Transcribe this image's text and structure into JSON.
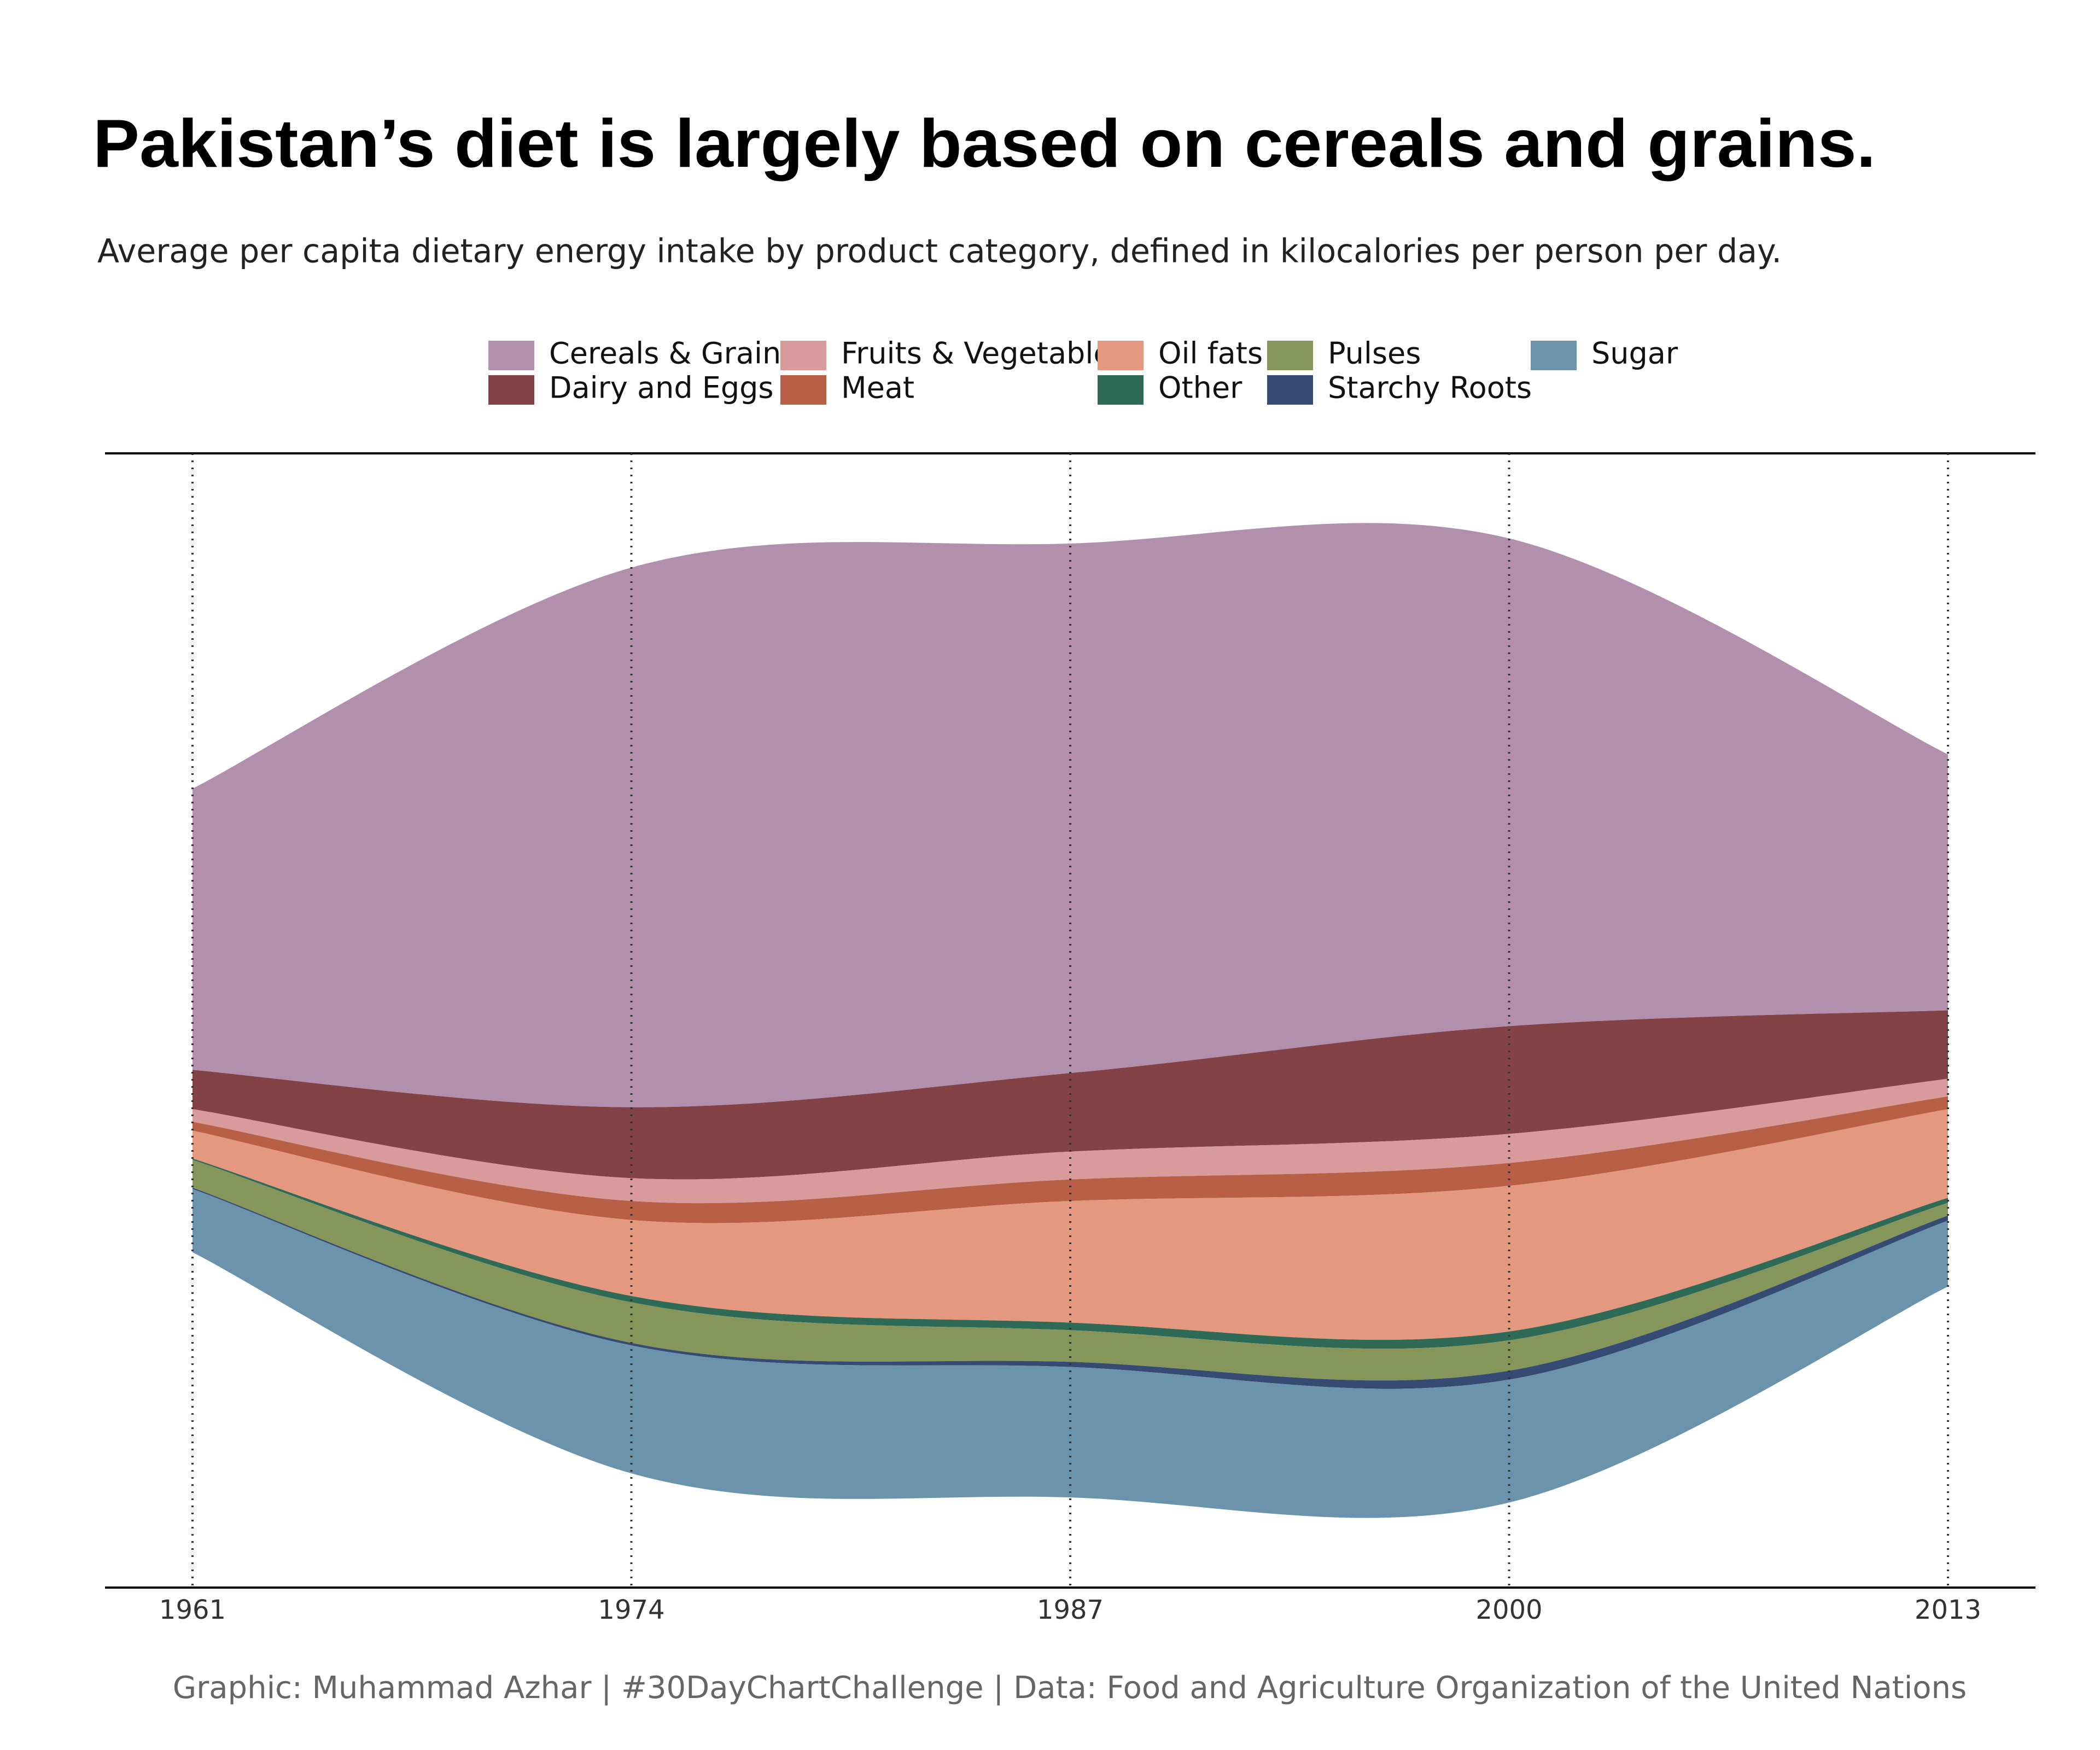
{
  "chart_data": {
    "type": "streamgraph",
    "title": "Pakistan’s diet is largely based on cereals and grains.",
    "subtitle": "Average per capita dietary energy intake by product category, defined in kilocalories per person per day.",
    "caption": "Graphic: Muhammad Azhar | #30DayChartChallenge | Data:  Food and Agriculture Organization of the United Nations",
    "x": [
      1961,
      1974,
      1987,
      2000,
      2013
    ],
    "xlim": [
      1961,
      2013
    ],
    "xticks": [
      1961,
      1974,
      1987,
      2000,
      2013
    ],
    "grid": true,
    "legend": "top",
    "series": [
      {
        "name": "Cereals & Grains",
        "color": "#b38fae",
        "values": [
          666,
          1278,
          1254,
          1155,
          606
        ]
      },
      {
        "name": "Dairy and Eggs",
        "color": "#834245",
        "values": [
          93,
          168,
          186,
          255,
          162
        ]
      },
      {
        "name": "Fruits & Vegetable",
        "color": "#d89a9b",
        "values": [
          30,
          54,
          66,
          69,
          42
        ]
      },
      {
        "name": "Meat",
        "color": "#b85f45",
        "values": [
          21,
          45,
          51,
          54,
          30
        ]
      },
      {
        "name": "Oil fats",
        "color": "#e3987f",
        "values": [
          66,
          180,
          288,
          345,
          210
        ]
      },
      {
        "name": "Other",
        "color": "#2f6a57",
        "values": [
          3,
          15,
          18,
          21,
          12
        ]
      },
      {
        "name": "Pulses",
        "color": "#86955a",
        "values": [
          66,
          96,
          75,
          72,
          30
        ]
      },
      {
        "name": "Starchy Roots",
        "color": "#354b74",
        "values": [
          3,
          6,
          12,
          21,
          12
        ]
      },
      {
        "name": "Sugar",
        "color": "#6b93ab",
        "values": [
          150,
          303,
          309,
          291,
          156
        ]
      }
    ]
  }
}
